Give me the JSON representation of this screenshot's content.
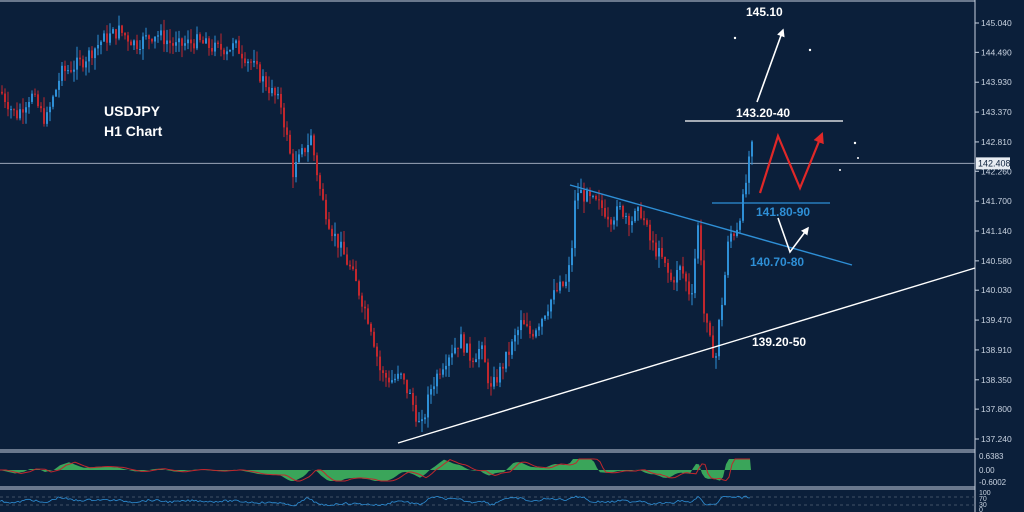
{
  "app": {
    "symbol": "USDJPY",
    "timeframe": "H1 Chart"
  },
  "colors": {
    "background": "#0b1f3a",
    "bull": "#2e8fd6",
    "bear": "#c1272d",
    "axis_text": "#c8d2e0",
    "osc_fill": "#3aa55a"
  },
  "chart_data": {
    "type": "candlestick",
    "title": "USDJPY H1 Chart",
    "ylim": [
      136.9,
      145.3
    ],
    "price_ticks": [
      145.04,
      144.49,
      143.93,
      143.37,
      142.81,
      142.26,
      141.7,
      141.14,
      140.58,
      140.03,
      139.47,
      138.91,
      138.35,
      137.8,
      137.24
    ],
    "tick_labels": [
      "145.040",
      "144.490",
      "143.930",
      "143.370",
      "142.810",
      "142.260",
      "141.700",
      "141.140",
      "140.580",
      "140.030",
      "139.470",
      "138.910",
      "138.350",
      "137.800",
      "137.240"
    ],
    "current_price": 142.408,
    "current_price_label": "142.408",
    "price_path": [
      [
        0,
        143.75
      ],
      [
        15,
        143.3
      ],
      [
        30,
        143.7
      ],
      [
        45,
        143.2
      ],
      [
        60,
        144.1
      ],
      [
        80,
        144.3
      ],
      [
        100,
        144.7
      ],
      [
        118,
        144.9
      ],
      [
        135,
        144.65
      ],
      [
        155,
        144.85
      ],
      [
        175,
        144.6
      ],
      [
        195,
        144.7
      ],
      [
        215,
        144.55
      ],
      [
        235,
        144.6
      ],
      [
        250,
        144.3
      ],
      [
        265,
        143.9
      ],
      [
        280,
        143.5
      ],
      [
        292,
        142.25
      ],
      [
        300,
        142.55
      ],
      [
        310,
        142.9
      ],
      [
        320,
        141.8
      ],
      [
        330,
        141.2
      ],
      [
        340,
        140.8
      ],
      [
        350,
        140.4
      ],
      [
        360,
        139.9
      ],
      [
        370,
        139.35
      ],
      [
        380,
        138.45
      ],
      [
        390,
        138.35
      ],
      [
        400,
        138.4
      ],
      [
        410,
        138.0
      ],
      [
        420,
        137.4
      ],
      [
        430,
        138.2
      ],
      [
        440,
        138.6
      ],
      [
        450,
        138.9
      ],
      [
        460,
        139.1
      ],
      [
        470,
        138.75
      ],
      [
        480,
        138.95
      ],
      [
        490,
        138.15
      ],
      [
        500,
        138.55
      ],
      [
        510,
        138.95
      ],
      [
        520,
        139.4
      ],
      [
        530,
        139.2
      ],
      [
        540,
        139.5
      ],
      [
        550,
        139.85
      ],
      [
        557,
        140.05
      ],
      [
        565,
        140.15
      ],
      [
        570,
        140.6
      ],
      [
        575,
        141.9
      ],
      [
        580,
        141.85
      ],
      [
        590,
        141.7
      ],
      [
        600,
        141.6
      ],
      [
        610,
        141.4
      ],
      [
        620,
        141.55
      ],
      [
        630,
        141.35
      ],
      [
        640,
        141.5
      ],
      [
        650,
        140.9
      ],
      [
        660,
        140.65
      ],
      [
        670,
        140.2
      ],
      [
        680,
        140.45
      ],
      [
        690,
        139.9
      ],
      [
        698,
        141.4
      ],
      [
        703,
        139.6
      ],
      [
        708,
        139.1
      ],
      [
        712,
        138.9
      ],
      [
        715,
        138.8
      ],
      [
        718,
        139.4
      ],
      [
        722,
        139.95
      ],
      [
        728,
        141.05
      ],
      [
        735,
        141.15
      ],
      [
        742,
        141.7
      ],
      [
        748,
        142.4
      ],
      [
        751,
        142.7
      ]
    ],
    "annotations": [
      {
        "label": "145.10",
        "value": 145.1,
        "color": "#ffffff"
      },
      {
        "label": "143.20-40",
        "value": 143.3,
        "color": "#ffffff"
      },
      {
        "label": "141.80-90",
        "value": 141.85,
        "color": "#2e8fd6"
      },
      {
        "label": "140.70-80",
        "value": 140.75,
        "color": "#2e8fd6"
      },
      {
        "label": "139.20-50",
        "value": 139.35,
        "color": "#ffffff"
      }
    ],
    "oscillator": {
      "tick_labels": [
        "0.6383",
        "0.00",
        "-0.6002"
      ]
    },
    "rsi": {
      "tick_labels": [
        "100",
        "70",
        "30",
        "0"
      ]
    }
  }
}
